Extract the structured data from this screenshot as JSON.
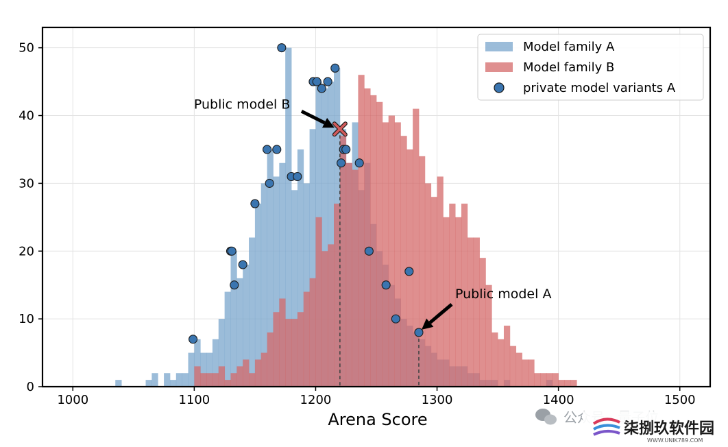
{
  "chart_data": {
    "type": "bar",
    "subtype": "overlapping-histogram",
    "title": "",
    "xlabel": "Arena Score",
    "ylabel": "",
    "xlim": [
      975,
      1525
    ],
    "ylim": [
      0,
      53
    ],
    "xticks": [
      1000,
      1100,
      1200,
      1300,
      1400,
      1500
    ],
    "yticks": [
      0,
      10,
      20,
      30,
      40,
      50
    ],
    "bin_width": 5,
    "grid": true,
    "legend_position": "top-right",
    "colors": {
      "family_a": "#7aa5cc",
      "family_b": "#d46a6a",
      "points": "#3a75b0",
      "cross": "#d15b5b",
      "arrow": "#000000"
    },
    "series": [
      {
        "name": "Model family A",
        "bins": [
          [
            1035,
            1
          ],
          [
            1060,
            1
          ],
          [
            1065,
            2
          ],
          [
            1075,
            2
          ],
          [
            1080,
            1
          ],
          [
            1085,
            2
          ],
          [
            1090,
            2
          ],
          [
            1095,
            5
          ],
          [
            1100,
            7
          ],
          [
            1105,
            5
          ],
          [
            1110,
            5
          ],
          [
            1115,
            7
          ],
          [
            1120,
            10
          ],
          [
            1125,
            14
          ],
          [
            1130,
            20
          ],
          [
            1135,
            16
          ],
          [
            1140,
            18
          ],
          [
            1145,
            22
          ],
          [
            1150,
            27
          ],
          [
            1155,
            30
          ],
          [
            1160,
            35
          ],
          [
            1165,
            31
          ],
          [
            1170,
            33
          ],
          [
            1175,
            50
          ],
          [
            1180,
            29
          ],
          [
            1185,
            35
          ],
          [
            1190,
            30
          ],
          [
            1195,
            38
          ],
          [
            1200,
            45
          ],
          [
            1205,
            44
          ],
          [
            1210,
            45
          ],
          [
            1215,
            47
          ],
          [
            1220,
            38
          ],
          [
            1225,
            33
          ],
          [
            1230,
            39
          ],
          [
            1235,
            29
          ],
          [
            1240,
            33
          ],
          [
            1245,
            24
          ],
          [
            1250,
            20
          ],
          [
            1255,
            18
          ],
          [
            1260,
            15
          ],
          [
            1265,
            13
          ],
          [
            1270,
            10
          ],
          [
            1275,
            9
          ],
          [
            1280,
            8
          ],
          [
            1285,
            7
          ],
          [
            1290,
            6
          ],
          [
            1295,
            5
          ],
          [
            1300,
            4
          ],
          [
            1305,
            4
          ],
          [
            1310,
            3
          ],
          [
            1315,
            3
          ],
          [
            1320,
            3
          ],
          [
            1325,
            2
          ],
          [
            1330,
            2
          ],
          [
            1335,
            1
          ],
          [
            1340,
            1
          ],
          [
            1345,
            1
          ],
          [
            1355,
            1
          ],
          [
            1390,
            1
          ]
        ]
      },
      {
        "name": "Model family B",
        "bins": [
          [
            1100,
            3
          ],
          [
            1105,
            2
          ],
          [
            1110,
            2
          ],
          [
            1115,
            2
          ],
          [
            1120,
            3
          ],
          [
            1125,
            1
          ],
          [
            1130,
            2
          ],
          [
            1135,
            3
          ],
          [
            1140,
            4
          ],
          [
            1145,
            2
          ],
          [
            1150,
            4
          ],
          [
            1155,
            5
          ],
          [
            1160,
            8
          ],
          [
            1165,
            11
          ],
          [
            1170,
            13
          ],
          [
            1175,
            10
          ],
          [
            1180,
            10
          ],
          [
            1185,
            11
          ],
          [
            1190,
            14
          ],
          [
            1195,
            16
          ],
          [
            1200,
            25
          ],
          [
            1205,
            20
          ],
          [
            1210,
            21
          ],
          [
            1215,
            27
          ],
          [
            1220,
            37
          ],
          [
            1225,
            33
          ],
          [
            1230,
            32
          ],
          [
            1235,
            46
          ],
          [
            1240,
            44
          ],
          [
            1245,
            43
          ],
          [
            1250,
            42
          ],
          [
            1255,
            39
          ],
          [
            1260,
            40
          ],
          [
            1265,
            39
          ],
          [
            1270,
            37
          ],
          [
            1275,
            35
          ],
          [
            1280,
            41
          ],
          [
            1285,
            34
          ],
          [
            1290,
            30
          ],
          [
            1295,
            28
          ],
          [
            1300,
            31
          ],
          [
            1305,
            25
          ],
          [
            1310,
            27
          ],
          [
            1315,
            25
          ],
          [
            1320,
            27
          ],
          [
            1325,
            22
          ],
          [
            1330,
            22
          ],
          [
            1335,
            19
          ],
          [
            1340,
            15
          ],
          [
            1345,
            8
          ],
          [
            1350,
            7
          ],
          [
            1355,
            9
          ],
          [
            1360,
            6
          ],
          [
            1365,
            5
          ],
          [
            1370,
            4
          ],
          [
            1375,
            4
          ],
          [
            1380,
            2
          ],
          [
            1385,
            2
          ],
          [
            1390,
            2
          ],
          [
            1395,
            2
          ],
          [
            1400,
            1
          ],
          [
            1405,
            1
          ],
          [
            1410,
            1
          ]
        ]
      }
    ],
    "points": {
      "name": "private model variants A",
      "values": [
        [
          1099,
          7
        ],
        [
          1130,
          20
        ],
        [
          1131,
          20
        ],
        [
          1133,
          15
        ],
        [
          1140,
          18
        ],
        [
          1150,
          27
        ],
        [
          1160,
          35
        ],
        [
          1162,
          30
        ],
        [
          1168,
          35
        ],
        [
          1180,
          31
        ],
        [
          1185,
          31
        ],
        [
          1172,
          50
        ],
        [
          1198,
          45
        ],
        [
          1201,
          45
        ],
        [
          1205,
          44
        ],
        [
          1210,
          45
        ],
        [
          1216,
          47
        ],
        [
          1221,
          33
        ],
        [
          1223,
          35
        ],
        [
          1225,
          35
        ],
        [
          1236,
          33
        ],
        [
          1244,
          20
        ],
        [
          1258,
          15
        ],
        [
          1266,
          10
        ],
        [
          1277,
          17
        ],
        [
          1285,
          8
        ]
      ]
    },
    "annotations": [
      {
        "text": "Public model B",
        "x": 1220,
        "y": 38,
        "marker": "x",
        "dashed_to_axis": true
      },
      {
        "text": "Public model A",
        "x": 1285,
        "y": 8,
        "marker": "circle",
        "dashed_to_axis": true
      }
    ]
  },
  "watermark": {
    "label_left": "公众号 · 量子位",
    "brand": "柒捌玖软件园",
    "url": "WWW.UNIK789.COM"
  }
}
